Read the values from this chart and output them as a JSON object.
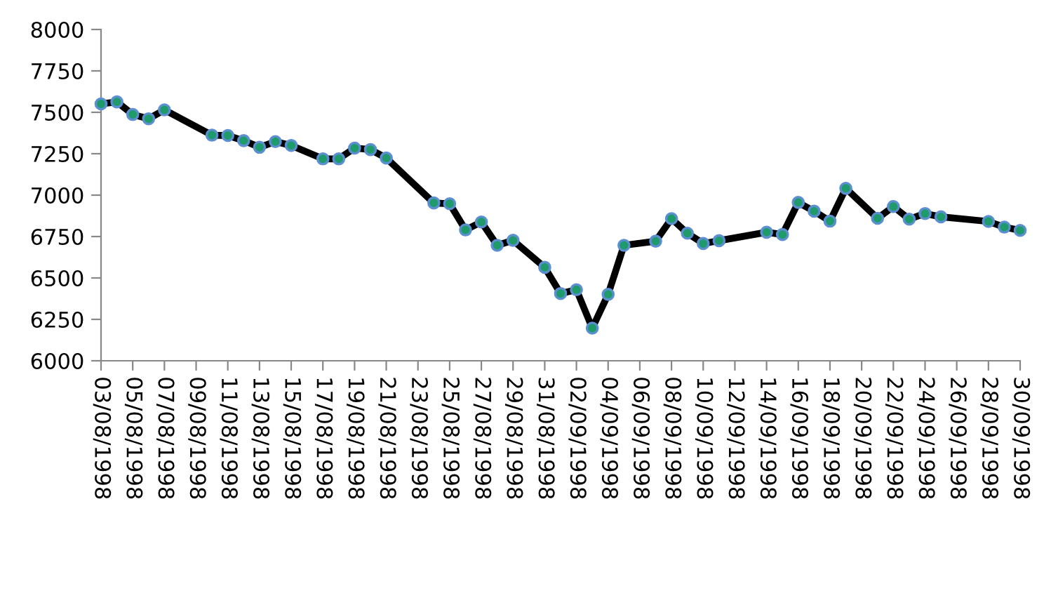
{
  "chart_data": {
    "type": "line",
    "marker": "circle",
    "line_style": "solid",
    "grid": false,
    "x": [
      "1998-08-03",
      "1998-08-04",
      "1998-08-05",
      "1998-08-06",
      "1998-08-07",
      "1998-08-10",
      "1998-08-11",
      "1998-08-12",
      "1998-08-13",
      "1998-08-14",
      "1998-08-15",
      "1998-08-17",
      "1998-08-18",
      "1998-08-19",
      "1998-08-20",
      "1998-08-21",
      "1998-08-24",
      "1998-08-25",
      "1998-08-26",
      "1998-08-27",
      "1998-08-28",
      "1998-08-29",
      "1998-08-31",
      "1998-09-01",
      "1998-09-02",
      "1998-09-03",
      "1998-09-04",
      "1998-09-05",
      "1998-09-07",
      "1998-09-08",
      "1998-09-09",
      "1998-09-10",
      "1998-09-11",
      "1998-09-14",
      "1998-09-15",
      "1998-09-16",
      "1998-09-17",
      "1998-09-18",
      "1998-09-19",
      "1998-09-21",
      "1998-09-22",
      "1998-09-23",
      "1998-09-24",
      "1998-09-25",
      "1998-09-28",
      "1998-09-29",
      "1998-09-30"
    ],
    "series": [
      {
        "color": "#000000",
        "values": [
          7551,
          7563,
          7487,
          7461,
          7515,
          7362,
          7360,
          7329,
          7289,
          7323,
          7300,
          7219,
          7219,
          7284,
          7275,
          7224,
          6953,
          6948,
          6790,
          6838,
          6697,
          6727,
          6564,
          6406,
          6429,
          6197,
          6401,
          6697,
          6722,
          6858,
          6770,
          6708,
          6725,
          6776,
          6762,
          6956,
          6903,
          6843,
          7041,
          6860,
          6931,
          6855,
          6889,
          6869,
          6841,
          6807,
          6787
        ]
      }
    ],
    "ylim": [
      6000,
      8000
    ],
    "yticks": [
      6000,
      6250,
      6500,
      6750,
      7000,
      7250,
      7500,
      7750,
      8000
    ],
    "xlim": [
      "1998-08-03",
      "1998-09-30"
    ],
    "xticks": [
      {
        "value": "1998-08-03",
        "label": "03/08/1998"
      },
      {
        "value": "1998-08-05",
        "label": "05/08/1998"
      },
      {
        "value": "1998-08-07",
        "label": "07/08/1998"
      },
      {
        "value": "1998-08-09",
        "label": "09/08/1998"
      },
      {
        "value": "1998-08-11",
        "label": "11/08/1998"
      },
      {
        "value": "1998-08-13",
        "label": "13/08/1998"
      },
      {
        "value": "1998-08-15",
        "label": "15/08/1998"
      },
      {
        "value": "1998-08-17",
        "label": "17/08/1998"
      },
      {
        "value": "1998-08-19",
        "label": "19/08/1998"
      },
      {
        "value": "1998-08-21",
        "label": "21/08/1998"
      },
      {
        "value": "1998-08-23",
        "label": "23/08/1998"
      },
      {
        "value": "1998-08-25",
        "label": "25/08/1998"
      },
      {
        "value": "1998-08-27",
        "label": "27/08/1998"
      },
      {
        "value": "1998-08-29",
        "label": "29/08/1998"
      },
      {
        "value": "1998-08-31",
        "label": "31/08/1998"
      },
      {
        "value": "1998-09-02",
        "label": "02/09/1998"
      },
      {
        "value": "1998-09-04",
        "label": "04/09/1998"
      },
      {
        "value": "1998-09-06",
        "label": "06/09/1998"
      },
      {
        "value": "1998-09-08",
        "label": "08/09/1998"
      },
      {
        "value": "1998-09-10",
        "label": "10/09/1998"
      },
      {
        "value": "1998-09-12",
        "label": "12/09/1998"
      },
      {
        "value": "1998-09-14",
        "label": "14/09/1998"
      },
      {
        "value": "1998-09-16",
        "label": "16/09/1998"
      },
      {
        "value": "1998-09-18",
        "label": "18/09/1998"
      },
      {
        "value": "1998-09-20",
        "label": "20/09/1998"
      },
      {
        "value": "1998-09-22",
        "label": "22/09/1998"
      },
      {
        "value": "1998-09-24",
        "label": "24/09/1998"
      },
      {
        "value": "1998-09-26",
        "label": "26/09/1998"
      },
      {
        "value": "1998-09-28",
        "label": "28/09/1998"
      },
      {
        "value": "1998-09-30",
        "label": "30/09/1998"
      }
    ]
  }
}
